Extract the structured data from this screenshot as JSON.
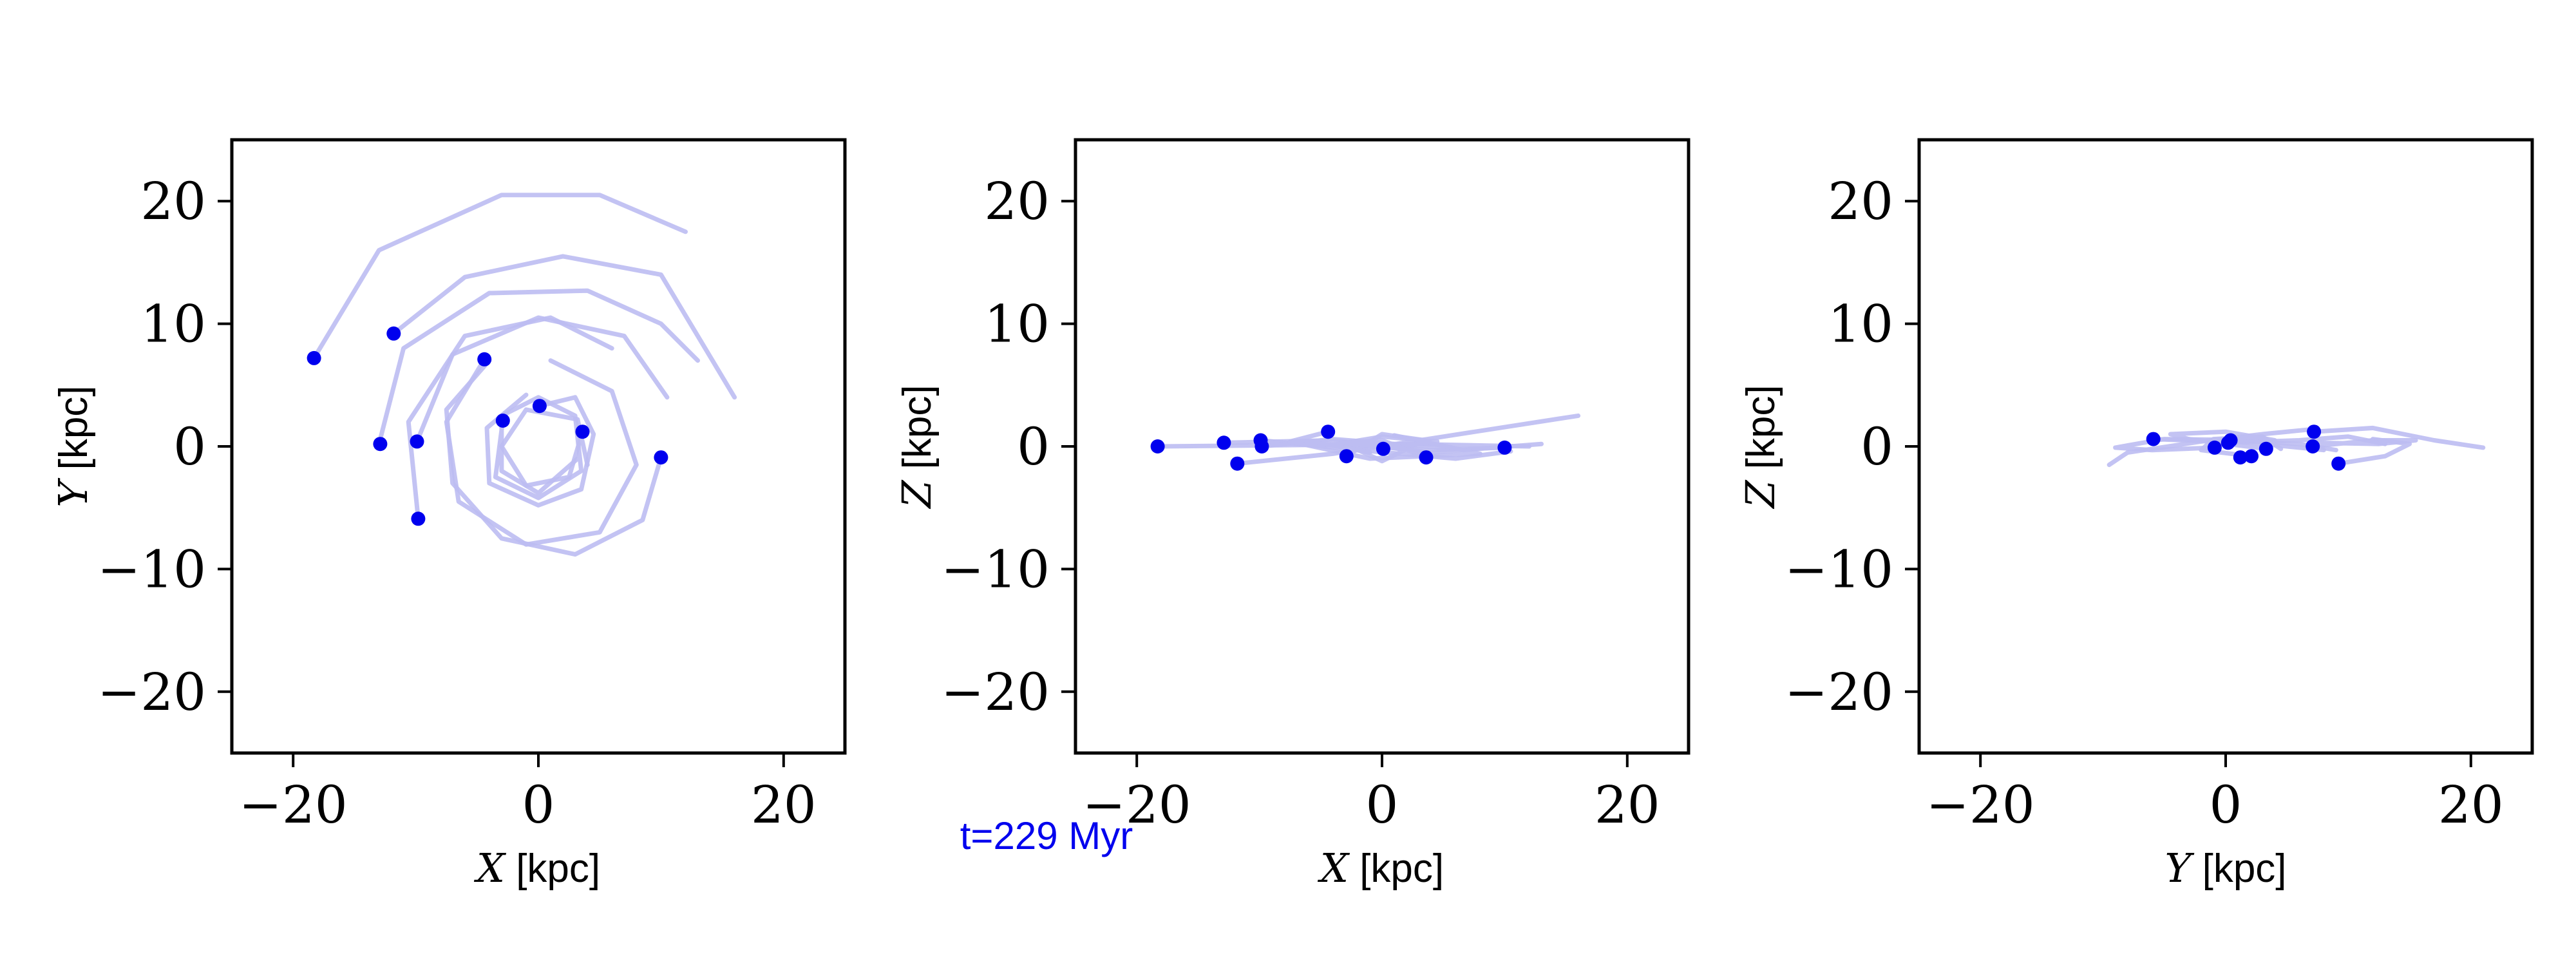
{
  "chart_data": [
    {
      "type": "scatter",
      "panel": "xy",
      "xlabel_var": "X",
      "xlabel_unit": "[kpc]",
      "ylabel_var": "Y",
      "ylabel_unit": "[kpc]",
      "xlim": [
        -25,
        25
      ],
      "ylim": [
        -25,
        25
      ],
      "xticks": [
        "−20",
        "0",
        "20"
      ],
      "yticks": [
        "−20",
        "−10",
        "0",
        "10",
        "20"
      ],
      "grid": false,
      "points": [
        {
          "x": -18.3,
          "y": 7.2
        },
        {
          "x": -11.8,
          "y": 9.2
        },
        {
          "x": -4.4,
          "y": 7.1
        },
        {
          "x": 0.1,
          "y": 3.3
        },
        {
          "x": -2.9,
          "y": 2.1
        },
        {
          "x": 3.6,
          "y": 1.2
        },
        {
          "x": -12.9,
          "y": 0.2
        },
        {
          "x": -9.9,
          "y": 0.4
        },
        {
          "x": 10.0,
          "y": -0.9
        },
        {
          "x": -9.8,
          "y": -5.9
        }
      ],
      "trails": [
        [
          [
            -18.3,
            7.2
          ],
          [
            -13.0,
            16.0
          ],
          [
            -3.0,
            20.5
          ],
          [
            5.0,
            20.5
          ],
          [
            12.0,
            17.5
          ]
        ],
        [
          [
            -11.8,
            9.2
          ],
          [
            -6.0,
            13.8
          ],
          [
            2.0,
            15.5
          ],
          [
            10.0,
            14.0
          ],
          [
            16.0,
            4.0
          ]
        ],
        [
          [
            -13.0,
            0.2
          ],
          [
            -11.0,
            8.0
          ],
          [
            -4.0,
            12.5
          ],
          [
            4.0,
            12.7
          ],
          [
            10.0,
            10.0
          ],
          [
            13.0,
            7.0
          ]
        ],
        [
          [
            -9.9,
            0.4
          ],
          [
            -7.0,
            7.5
          ],
          [
            0.0,
            10.5
          ],
          [
            7.0,
            9.0
          ],
          [
            10.5,
            4.0
          ]
        ],
        [
          [
            -9.8,
            -5.9
          ],
          [
            -10.6,
            2.0
          ],
          [
            -6.0,
            9.0
          ],
          [
            1.0,
            10.5
          ],
          [
            6.0,
            8.0
          ]
        ],
        [
          [
            10.0,
            -0.9
          ],
          [
            8.5,
            -6.0
          ],
          [
            3.0,
            -8.8
          ],
          [
            -3.0,
            -7.5
          ],
          [
            -7.0,
            -3.0
          ],
          [
            -7.5,
            3.0
          ],
          [
            -4.0,
            7.0
          ]
        ],
        [
          [
            -4.4,
            7.1
          ],
          [
            -7.5,
            2.0
          ],
          [
            -6.5,
            -4.5
          ],
          [
            -1.0,
            -8.0
          ],
          [
            5.0,
            -7.0
          ],
          [
            8.0,
            -1.5
          ],
          [
            6.0,
            4.5
          ],
          [
            1.0,
            7.0
          ]
        ],
        [
          [
            -2.9,
            2.1
          ],
          [
            -3.5,
            -2.5
          ],
          [
            0.0,
            -4.2
          ],
          [
            3.5,
            -2.0
          ],
          [
            3.0,
            2.5
          ],
          [
            0.0,
            4.0
          ],
          [
            -3.0,
            2.5
          ],
          [
            -3.0,
            -2.0
          ],
          [
            0.0,
            -3.8
          ],
          [
            3.2,
            -1.0
          ]
        ],
        [
          [
            0.1,
            3.3
          ],
          [
            3.0,
            4.0
          ],
          [
            4.5,
            1.0
          ],
          [
            3.5,
            -3.5
          ],
          [
            0.0,
            -4.8
          ],
          [
            -4.0,
            -3.0
          ],
          [
            -4.2,
            1.5
          ],
          [
            -1.0,
            4.2
          ]
        ],
        [
          [
            3.6,
            1.2
          ],
          [
            2.5,
            -2.5
          ],
          [
            -1.0,
            -3.2
          ],
          [
            -3.0,
            0.0
          ],
          [
            -1.0,
            3.0
          ],
          [
            3.2,
            2.2
          ],
          [
            4.0,
            -1.5
          ]
        ]
      ]
    },
    {
      "type": "scatter",
      "panel": "xz",
      "xlabel_var": "X",
      "xlabel_unit": "[kpc]",
      "ylabel_var": "Z",
      "ylabel_unit": "[kpc]",
      "xlim": [
        -25,
        25
      ],
      "ylim": [
        -25,
        25
      ],
      "xticks": [
        "−20",
        "0",
        "20"
      ],
      "yticks": [
        "−20",
        "−10",
        "0",
        "10",
        "20"
      ],
      "grid": false,
      "points": [
        {
          "x": -18.3,
          "y": 0.0
        },
        {
          "x": -12.9,
          "y": 0.3
        },
        {
          "x": -11.8,
          "y": -1.4
        },
        {
          "x": -9.9,
          "y": 0.5
        },
        {
          "x": -9.8,
          "y": 0.0
        },
        {
          "x": -4.4,
          "y": 1.2
        },
        {
          "x": -2.9,
          "y": -0.8
        },
        {
          "x": 0.1,
          "y": -0.2
        },
        {
          "x": 3.6,
          "y": -0.9
        },
        {
          "x": 10.0,
          "y": -0.1
        }
      ],
      "trails": [
        [
          [
            -18.3,
            0.0
          ],
          [
            -8.0,
            0.1
          ],
          [
            2.0,
            0.2
          ],
          [
            12.0,
            0.0
          ]
        ],
        [
          [
            -11.8,
            -1.4
          ],
          [
            -4.0,
            -0.6
          ],
          [
            5.0,
            0.8
          ],
          [
            16.0,
            2.5
          ]
        ],
        [
          [
            -12.9,
            0.3
          ],
          [
            -4.0,
            0.5
          ],
          [
            4.0,
            -0.5
          ],
          [
            13.0,
            0.2
          ]
        ],
        [
          [
            -9.9,
            0.5
          ],
          [
            -2.0,
            -0.3
          ],
          [
            6.0,
            -1.0
          ],
          [
            10.5,
            -0.4
          ]
        ],
        [
          [
            -9.8,
            0.0
          ],
          [
            -4.0,
            0.6
          ],
          [
            1.0,
            0.2
          ],
          [
            6.0,
            -0.2
          ]
        ],
        [
          [
            10.0,
            -0.1
          ],
          [
            4.0,
            -0.3
          ],
          [
            -3.0,
            0.1
          ],
          [
            -7.5,
            0.3
          ]
        ],
        [
          [
            -4.4,
            1.2
          ],
          [
            -7.5,
            0.4
          ],
          [
            -1.0,
            -1.0
          ],
          [
            8.0,
            -0.6
          ],
          [
            1.0,
            0.9
          ]
        ],
        [
          [
            -2.9,
            -0.8
          ],
          [
            0.0,
            1.0
          ],
          [
            3.5,
            0.5
          ],
          [
            0.0,
            -1.2
          ],
          [
            -3.0,
            0.2
          ]
        ],
        [
          [
            0.1,
            -0.2
          ],
          [
            4.5,
            0.4
          ],
          [
            0.0,
            0.8
          ],
          [
            -4.2,
            0.1
          ],
          [
            -1.0,
            -0.5
          ]
        ],
        [
          [
            3.6,
            -0.9
          ],
          [
            0.0,
            0.5
          ],
          [
            -3.0,
            0.3
          ],
          [
            3.2,
            -0.4
          ]
        ]
      ]
    },
    {
      "type": "scatter",
      "panel": "yz",
      "xlabel_var": "Y",
      "xlabel_unit": "[kpc]",
      "ylabel_var": "Z",
      "ylabel_unit": "[kpc]",
      "xlim": [
        -25,
        25
      ],
      "ylim": [
        -25,
        25
      ],
      "xticks": [
        "−20",
        "0",
        "20"
      ],
      "yticks": [
        "−20",
        "−10",
        "0",
        "10",
        "20"
      ],
      "grid": false,
      "points": [
        {
          "x": 7.2,
          "y": 1.2
        },
        {
          "x": 9.2,
          "y": -1.4
        },
        {
          "x": 7.1,
          "y": 0.0
        },
        {
          "x": 3.3,
          "y": -0.2
        },
        {
          "x": 2.1,
          "y": -0.8
        },
        {
          "x": 1.2,
          "y": -0.9
        },
        {
          "x": 0.2,
          "y": 0.3
        },
        {
          "x": 0.4,
          "y": 0.5
        },
        {
          "x": -0.9,
          "y": -0.1
        },
        {
          "x": -5.9,
          "y": 0.6
        }
      ],
      "trails": [
        [
          [
            7.2,
            1.2
          ],
          [
            12.0,
            1.5
          ],
          [
            17.0,
            0.5
          ],
          [
            21.0,
            -0.1
          ]
        ],
        [
          [
            9.2,
            -1.4
          ],
          [
            13.0,
            -0.8
          ],
          [
            15.0,
            0.2
          ],
          [
            12.0,
            0.6
          ]
        ],
        [
          [
            7.1,
            0.0
          ],
          [
            12.0,
            0.5
          ],
          [
            15.5,
            0.5
          ],
          [
            12.5,
            0.2
          ],
          [
            7.0,
            0.3
          ]
        ],
        [
          [
            0.2,
            0.3
          ],
          [
            6.0,
            0.5
          ],
          [
            10.0,
            0.8
          ],
          [
            13.0,
            0.2
          ]
        ],
        [
          [
            0.4,
            0.5
          ],
          [
            6.0,
            0.2
          ],
          [
            9.0,
            -0.3
          ]
        ],
        [
          [
            -5.9,
            0.6
          ],
          [
            2.0,
            0.3
          ],
          [
            8.0,
            -0.3
          ]
        ],
        [
          [
            -0.9,
            -0.1
          ],
          [
            -6.0,
            -0.3
          ],
          [
            -9.0,
            -0.1
          ],
          [
            -5.0,
            0.6
          ],
          [
            3.0,
            0.5
          ]
        ],
        [
          [
            7.1,
            1.4
          ],
          [
            3.0,
            1.0
          ],
          [
            -2.0,
            0.4
          ],
          [
            -8.0,
            -0.5
          ],
          [
            -9.5,
            -1.5
          ]
        ],
        [
          [
            3.3,
            -0.2
          ],
          [
            -3.0,
            0.6
          ],
          [
            -4.5,
            1.0
          ],
          [
            0.0,
            1.2
          ],
          [
            4.0,
            0.5
          ]
        ],
        [
          [
            2.1,
            -0.8
          ],
          [
            -2.0,
            -0.3
          ],
          [
            -1.0,
            0.6
          ],
          [
            3.0,
            0.8
          ],
          [
            4.5,
            -0.2
          ]
        ]
      ]
    }
  ],
  "time_label": "t=229 Myr",
  "colors": {
    "marker": "#0000ee",
    "trail": "#bcbcf2",
    "axis": "#000000",
    "time_label": "#0000ee"
  }
}
